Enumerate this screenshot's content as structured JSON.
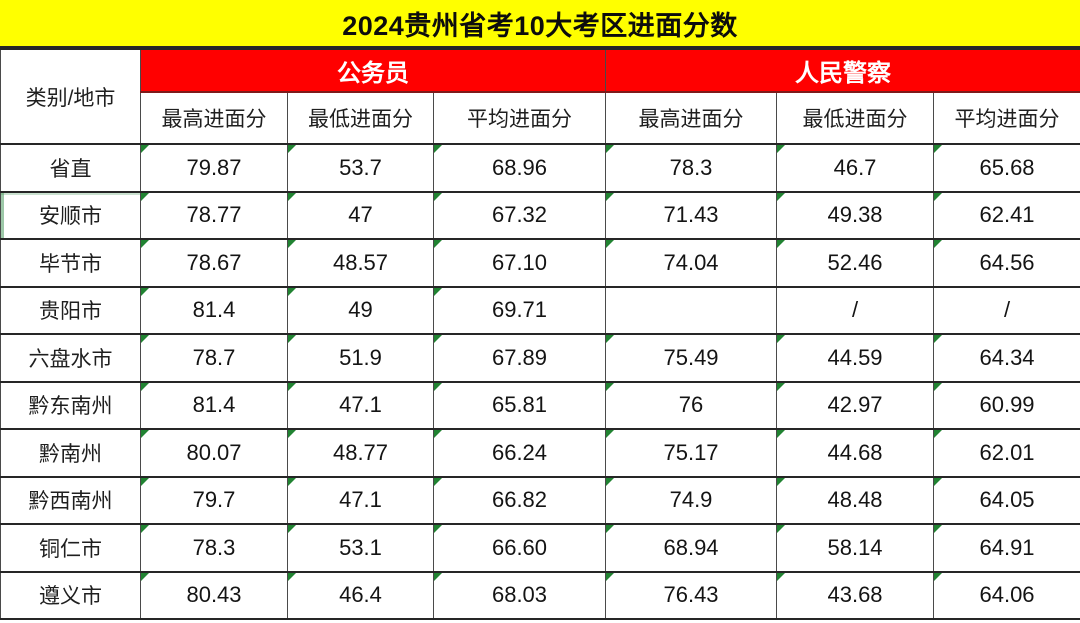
{
  "chart_data": {
    "type": "table",
    "title": "2024贵州省考10大考区进面分数",
    "corner_header": "类别/地市",
    "column_groups": [
      {
        "label": "公务员",
        "sub_columns": [
          "最高进面分",
          "最低进面分",
          "平均进面分"
        ]
      },
      {
        "label": "人民警察",
        "sub_columns": [
          "最高进面分",
          "最低进面分",
          "平均进面分"
        ]
      }
    ],
    "rows": [
      {
        "region": "省直",
        "values": [
          "79.87",
          "53.7",
          "68.96",
          "78.3",
          "46.7",
          "65.68"
        ]
      },
      {
        "region": "安顺市",
        "values": [
          "78.77",
          "47",
          "67.32",
          "71.43",
          "49.38",
          "62.41"
        ]
      },
      {
        "region": "毕节市",
        "values": [
          "78.67",
          "48.57",
          "67.10",
          "74.04",
          "52.46",
          "64.56"
        ]
      },
      {
        "region": "贵阳市",
        "values": [
          "81.4",
          "49",
          "69.71",
          "",
          "/",
          "/"
        ]
      },
      {
        "region": "六盘水市",
        "values": [
          "78.7",
          "51.9",
          "67.89",
          "75.49",
          "44.59",
          "64.34"
        ]
      },
      {
        "region": "黔东南州",
        "values": [
          "81.4",
          "47.1",
          "65.81",
          "76",
          "42.97",
          "60.99"
        ]
      },
      {
        "region": "黔南州",
        "values": [
          "80.07",
          "48.77",
          "66.24",
          "75.17",
          "44.68",
          "62.01"
        ]
      },
      {
        "region": "黔西南州",
        "values": [
          "79.7",
          "47.1",
          "66.82",
          "74.9",
          "48.48",
          "64.05"
        ]
      },
      {
        "region": "铜仁市",
        "values": [
          "78.3",
          "53.1",
          "66.60",
          "68.94",
          "58.14",
          "64.91"
        ]
      },
      {
        "region": "遵义市",
        "values": [
          "80.43",
          "46.4",
          "68.03",
          "76.43",
          "43.68",
          "64.06"
        ]
      }
    ]
  },
  "colors": {
    "title_bg": "#FFFF00",
    "header_bg": "#FF0000",
    "header_text": "#FFFFFF",
    "flag_green": "#218332",
    "border_dark": "#262626",
    "border_gray": "#4A4A4A"
  }
}
